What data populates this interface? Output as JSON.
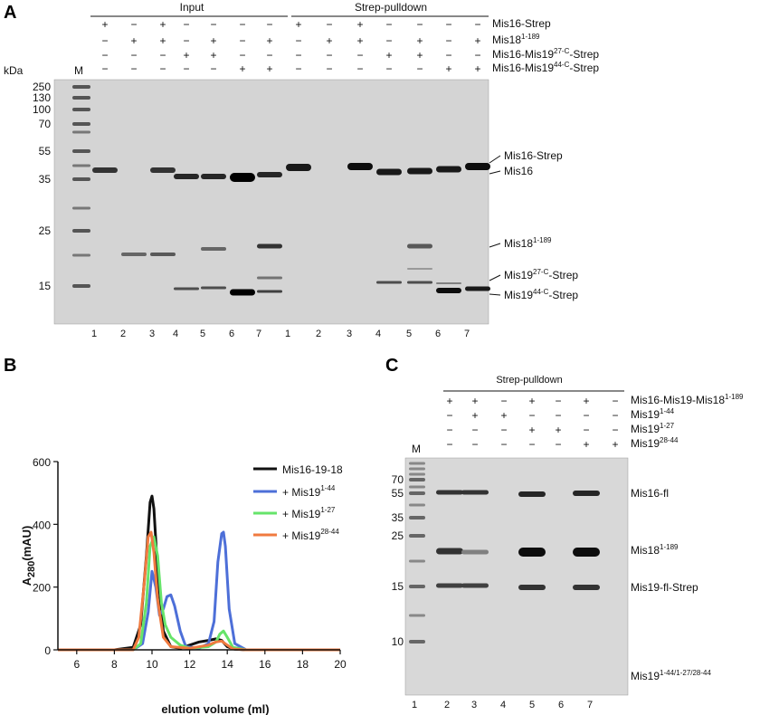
{
  "panels": {
    "A": {
      "letter": "A",
      "group_labels": [
        "Input",
        "Strep-pulldown"
      ],
      "row_labels": [
        {
          "base": "Mis16-Strep",
          "sup": "",
          "tail": ""
        },
        {
          "base": "Mis18",
          "sup": "1-189",
          "tail": ""
        },
        {
          "base": "Mis16-Mis19",
          "sup": "27-C",
          "tail": "-Strep"
        },
        {
          "base": "Mis16-Mis19",
          "sup": "44-C",
          "tail": "-Strep"
        }
      ],
      "signs": [
        [
          "+",
          "−",
          "+",
          "−",
          "−",
          "−",
          "−",
          "+",
          "−",
          "+",
          "−",
          "−",
          "−",
          "−"
        ],
        [
          "−",
          "+",
          "+",
          "−",
          "+",
          "−",
          "+",
          "−",
          "+",
          "+",
          "−",
          "+",
          "−",
          "+"
        ],
        [
          "−",
          "−",
          "−",
          "+",
          "+",
          "−",
          "−",
          "−",
          "−",
          "−",
          "+",
          "+",
          "−",
          "−"
        ],
        [
          "−",
          "−",
          "−",
          "−",
          "−",
          "+",
          "+",
          "−",
          "−",
          "−",
          "−",
          "−",
          "+",
          "+"
        ]
      ],
      "kda_label": "kDa",
      "marker_label": "M",
      "mw_ladder": [
        "250",
        "130",
        "100",
        "70",
        "55",
        "35",
        "25",
        "15"
      ],
      "lane_numbers": [
        "1",
        "2",
        "3",
        "4",
        "5",
        "6",
        "7",
        "1",
        "2",
        "3",
        "4",
        "5",
        "6",
        "7"
      ],
      "band_labels": [
        {
          "base": "Mis16-Strep",
          "sup": "",
          "tail": ""
        },
        {
          "base": "Mis16",
          "sup": "",
          "tail": ""
        },
        {
          "base": "Mis18",
          "sup": "1-189",
          "tail": ""
        },
        {
          "base": "Mis19",
          "sup": "27-C",
          "tail": "-Strep"
        },
        {
          "base": "Mis19",
          "sup": "44-C",
          "tail": "-Strep"
        }
      ]
    },
    "B": {
      "letter": "B",
      "legend": [
        {
          "base": "Mis16-19-18",
          "sup": ""
        },
        {
          "base": "+ Mis19",
          "sup": "1-44"
        },
        {
          "base": "+ Mis19",
          "sup": "1-27"
        },
        {
          "base": "+ Mis19",
          "sup": "28-44"
        }
      ]
    },
    "C": {
      "letter": "C",
      "group_label": "Strep-pulldown",
      "row_labels": [
        {
          "base": "Mis16-Mis19-Mis18",
          "sup": "1-189"
        },
        {
          "base": "Mis19",
          "sup": "1-44"
        },
        {
          "base": "Mis19",
          "sup": "1-27"
        },
        {
          "base": "Mis19",
          "sup": "28-44"
        }
      ],
      "signs": [
        [
          "+",
          "+",
          "−",
          "+",
          "−",
          "+",
          "−"
        ],
        [
          "−",
          "+",
          "+",
          "−",
          "−",
          "−",
          "−"
        ],
        [
          "−",
          "−",
          "−",
          "+",
          "+",
          "−",
          "−"
        ],
        [
          "−",
          "−",
          "−",
          "−",
          "−",
          "+",
          "+"
        ]
      ],
      "marker_label": "M",
      "mw_ladder": [
        "70",
        "55",
        "35",
        "25",
        "15",
        "10"
      ],
      "lane_numbers": [
        "1",
        "2",
        "3",
        "4",
        "5",
        "6",
        "7"
      ],
      "band_labels": [
        {
          "base": "Mis16-fl",
          "sup": ""
        },
        {
          "base": "Mis18",
          "sup": "1-189"
        },
        {
          "base": "Mis19-fl-Strep",
          "sup": ""
        },
        {
          "base": "Mis19",
          "sup": "1-44/1-27/28-44"
        }
      ]
    }
  },
  "chart_data": {
    "type": "line",
    "title": "",
    "xlabel": "elution volume (ml)",
    "ylabel_main": "A",
    "ylabel_sub": "280",
    "ylabel_unit": "(mAU)",
    "xlim": [
      5,
      20
    ],
    "ylim": [
      0,
      600
    ],
    "xticks": [
      6,
      8,
      10,
      12,
      14,
      16,
      18,
      20
    ],
    "yticks": [
      0,
      200,
      400,
      600
    ],
    "grid": false,
    "legend_position": "right",
    "series": [
      {
        "name": "Mis16-19-18",
        "color": "#111111",
        "x": [
          5,
          8,
          9,
          9.4,
          9.7,
          9.9,
          10,
          10.1,
          10.3,
          10.6,
          11,
          11.5,
          12,
          12.5,
          13,
          13.4,
          13.7,
          14,
          14.4,
          15,
          17,
          20
        ],
        "y": [
          0,
          0,
          8,
          80,
          300,
          470,
          490,
          450,
          250,
          60,
          10,
          5,
          15,
          25,
          30,
          35,
          30,
          10,
          2,
          0,
          0,
          0
        ]
      },
      {
        "name": "+ Mis19 1-44",
        "color": "#4d6fd8",
        "x": [
          5,
          9,
          9.5,
          9.8,
          10,
          10.2,
          10.4,
          10.6,
          10.8,
          11,
          11.2,
          11.5,
          11.8,
          12.5,
          13,
          13.3,
          13.5,
          13.7,
          13.8,
          13.9,
          14.1,
          14.4,
          15,
          20
        ],
        "y": [
          0,
          0,
          20,
          120,
          250,
          200,
          110,
          130,
          170,
          175,
          140,
          60,
          10,
          5,
          20,
          90,
          280,
          370,
          375,
          330,
          130,
          20,
          0,
          0
        ]
      },
      {
        "name": "+ Mis19 1-27",
        "color": "#66e46a",
        "x": [
          5,
          9,
          9.4,
          9.7,
          9.9,
          10.1,
          10.3,
          10.5,
          10.7,
          11,
          11.5,
          12,
          13,
          13.4,
          13.6,
          13.8,
          14,
          14.3,
          15,
          20
        ],
        "y": [
          0,
          0,
          20,
          150,
          330,
          360,
          300,
          150,
          80,
          40,
          15,
          5,
          10,
          25,
          50,
          60,
          40,
          8,
          0,
          0
        ]
      },
      {
        "name": "+ Mis19 28-44",
        "color": "#f07a3f",
        "x": [
          5,
          9,
          9.3,
          9.6,
          9.8,
          9.95,
          10.1,
          10.3,
          10.6,
          11,
          12,
          13,
          13.4,
          13.7,
          14,
          14.3,
          15,
          20
        ],
        "y": [
          0,
          0,
          40,
          220,
          360,
          375,
          310,
          160,
          40,
          10,
          5,
          15,
          25,
          28,
          15,
          3,
          0,
          0
        ]
      }
    ]
  }
}
